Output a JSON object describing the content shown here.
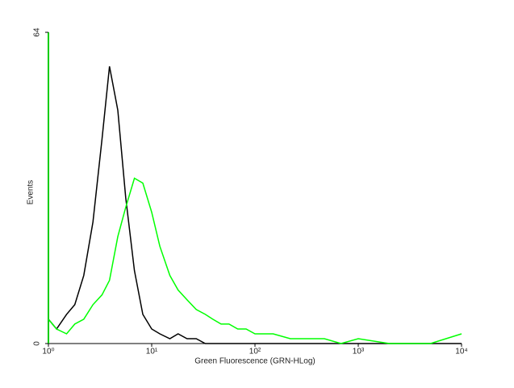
{
  "chart_data": {
    "type": "line",
    "x_label": "Green Fluorescence (GRN-HLog)",
    "y_label": "Events",
    "log_x": true,
    "x": [
      1,
      1.2,
      1.5,
      1.8,
      2.2,
      2.7,
      3.3,
      3.9,
      4.7,
      5.6,
      6.8,
      8.2,
      10,
      12,
      15,
      18,
      22,
      27,
      33,
      39,
      47,
      56,
      68,
      82,
      100,
      150,
      220,
      330,
      470,
      680,
      1000,
      2000,
      5000,
      10000
    ],
    "series": [
      {
        "color": "#000000",
        "values": [
          5,
          3,
          6,
          8,
          14,
          25,
          42,
          57,
          48,
          30,
          15,
          6,
          3,
          2,
          1,
          2,
          1,
          1,
          0,
          0,
          0,
          0,
          0,
          0,
          0,
          0,
          0,
          0,
          0,
          0,
          0,
          0,
          0,
          0
        ]
      },
      {
        "color": "#00ff00",
        "values": [
          5,
          3,
          2,
          4,
          5,
          8,
          10,
          13,
          22,
          28,
          34,
          33,
          27,
          20,
          14,
          11,
          9,
          7,
          6,
          5,
          4,
          4,
          3,
          3,
          2,
          2,
          1,
          1,
          1,
          0,
          1,
          0,
          0,
          2
        ]
      }
    ],
    "xlim": [
      1,
      10000
    ],
    "xticks": [
      {
        "value": 1,
        "label": "10⁰"
      },
      {
        "value": 10,
        "label": "10¹"
      },
      {
        "value": 100,
        "label": "10²"
      },
      {
        "value": 1000,
        "label": "10³"
      },
      {
        "value": 10000,
        "label": "10⁴"
      }
    ],
    "ylim": [
      0,
      64
    ],
    "yticks": [
      0,
      64
    ]
  }
}
